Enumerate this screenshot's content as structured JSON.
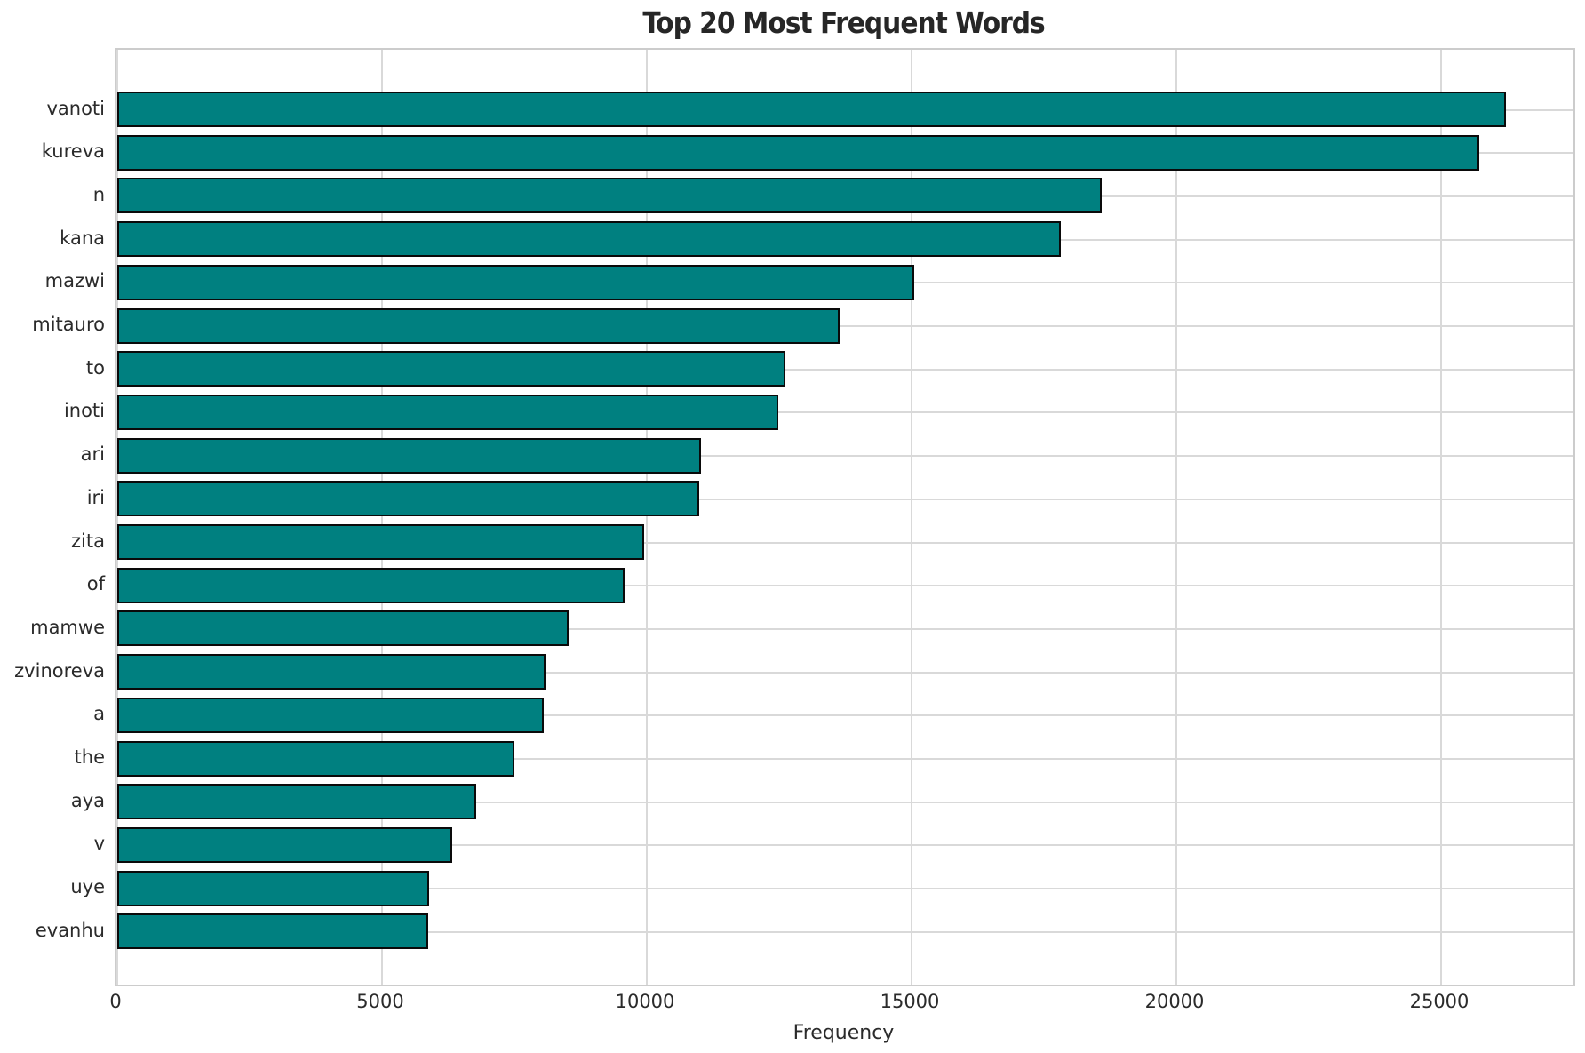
{
  "chart_data": {
    "type": "bar",
    "orientation": "horizontal",
    "title": "Top 20 Most Frequent Words",
    "xlabel": "Frequency",
    "ylabel": "",
    "categories": [
      "vanoti",
      "kureva",
      "n",
      "kana",
      "mazwi",
      "mitauro",
      "to",
      "inoti",
      "ari",
      "iri",
      "zita",
      "of",
      "mamwe",
      "zvinoreva",
      "a",
      "the",
      "aya",
      "v",
      "uye",
      "evanhu"
    ],
    "values": [
      26200,
      25700,
      18570,
      17800,
      15030,
      13620,
      12600,
      12450,
      11000,
      10960,
      9930,
      9560,
      8490,
      8070,
      8030,
      7470,
      6750,
      6300,
      5860,
      5840
    ],
    "xticks": [
      0,
      5000,
      10000,
      15000,
      20000,
      25000
    ],
    "xlim": [
      0,
      27500
    ],
    "grid": true,
    "legend": false,
    "colors": {
      "bar_fill": "#008080",
      "bar_edge": "#0a0a0a",
      "grid": "#d9d9d9",
      "spine": "#cccccc",
      "title_text": "#262626",
      "tick_text": "#2b2b2b",
      "background": "#ffffff"
    }
  }
}
